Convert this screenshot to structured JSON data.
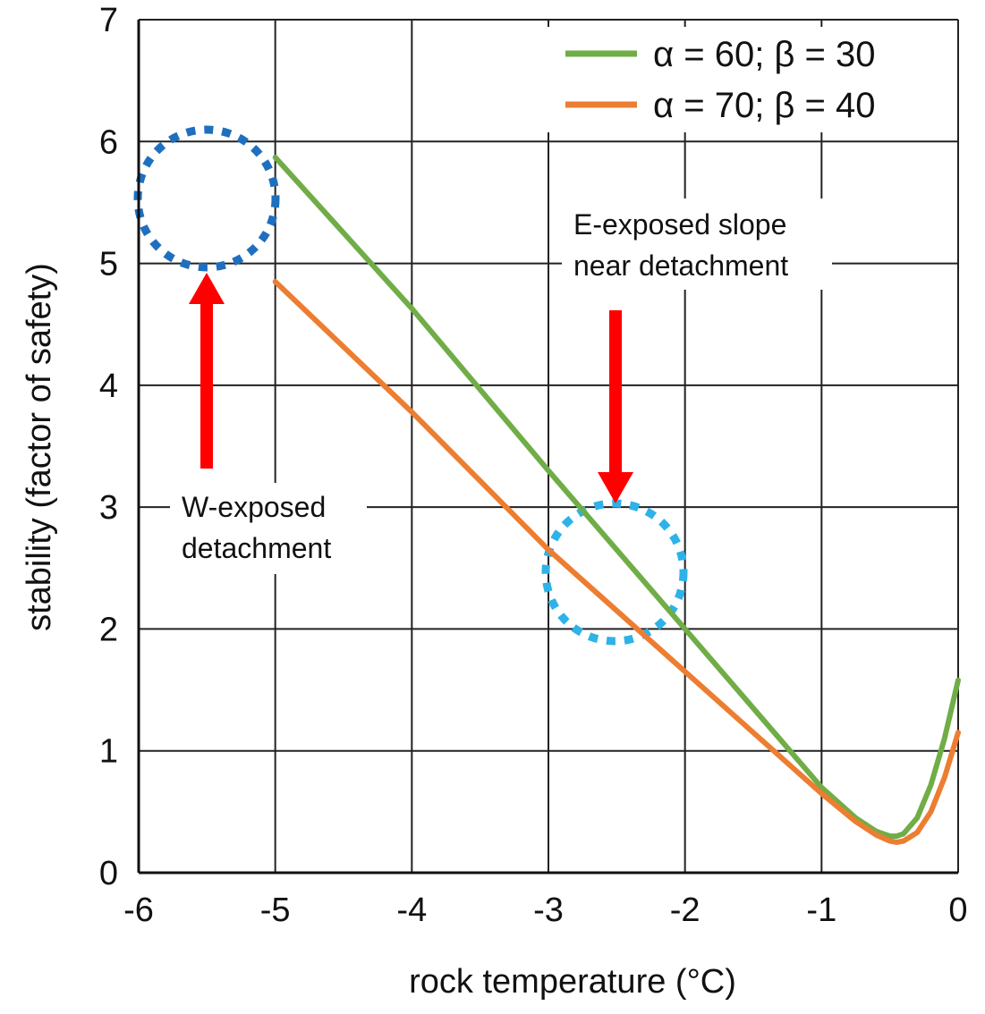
{
  "chart_data": {
    "type": "line",
    "xlabel": "rock temperature (°C)",
    "ylabel": "stability (factor of safety)",
    "xlim": [
      -6,
      0
    ],
    "ylim": [
      0,
      7
    ],
    "xticks": [
      -6,
      -5,
      -4,
      -3,
      -2,
      -1,
      0
    ],
    "yticks": [
      0,
      1,
      2,
      3,
      4,
      5,
      6,
      7
    ],
    "grid": true,
    "legend_position": "top-right",
    "series": [
      {
        "name": "α = 60; β = 30",
        "color": "#70AD47",
        "x": [
          -5,
          -4,
          -3,
          -2,
          -1.5,
          -1,
          -0.75,
          -0.6,
          -0.5,
          -0.45,
          -0.4,
          -0.3,
          -0.2,
          -0.1,
          0
        ],
        "y": [
          5.87,
          4.63,
          3.3,
          2.0,
          1.35,
          0.7,
          0.45,
          0.34,
          0.3,
          0.3,
          0.32,
          0.45,
          0.72,
          1.1,
          1.58
        ]
      },
      {
        "name": "α = 70; β = 40",
        "color": "#ED7D31",
        "x": [
          -5,
          -4,
          -3,
          -2,
          -1.5,
          -1,
          -0.75,
          -0.6,
          -0.5,
          -0.45,
          -0.4,
          -0.3,
          -0.2,
          -0.1,
          0
        ],
        "y": [
          4.85,
          3.78,
          2.65,
          1.65,
          1.15,
          0.65,
          0.42,
          0.31,
          0.26,
          0.25,
          0.26,
          0.33,
          0.5,
          0.78,
          1.15
        ]
      }
    ],
    "annotations": [
      {
        "text_lines": [
          "W-exposed",
          "detachment"
        ],
        "circle": {
          "x": -5.5,
          "y": 5.55,
          "color": "#1F6FBF"
        },
        "arrow_direction": "up",
        "arrow_color": "#FF0000"
      },
      {
        "text_lines": [
          "E-exposed slope",
          "near detachment"
        ],
        "circle": {
          "x": -2.5,
          "y": 2.5,
          "color": "#2EB2E8"
        },
        "arrow_direction": "down",
        "arrow_color": "#FF0000"
      }
    ]
  }
}
